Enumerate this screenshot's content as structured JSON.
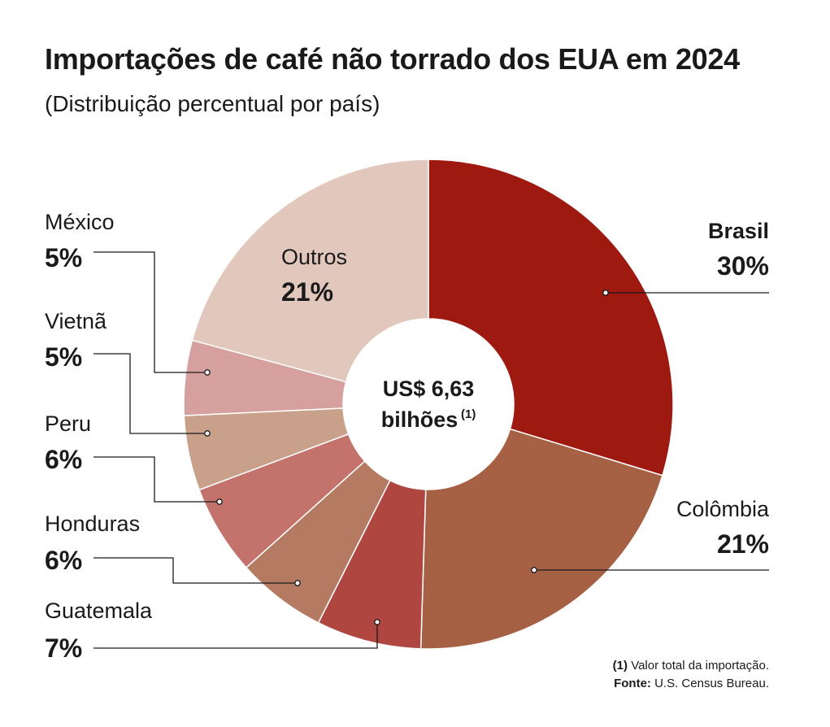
{
  "title": "Importações de café não torrado dos EUA em 2024",
  "subtitle": "(Distribuição percentual por país)",
  "center": {
    "line1": "US$ 6,63",
    "line2": "bilhões",
    "superscript": "(1)"
  },
  "footnote": {
    "note_marker": "(1)",
    "note_text": "Valor total da importação.",
    "source_label": "Fonte:",
    "source_text": "U.S. Census Bureau."
  },
  "chart_data": {
    "type": "pie",
    "title": "Importações de café não torrado dos EUA em 2024",
    "subtitle": "(Distribuição percentual por país)",
    "total_label": "US$ 6,63 bilhões",
    "unit": "%",
    "slices": [
      {
        "name": "Brasil",
        "value": 30,
        "label": "30%",
        "color": "#9e1a10"
      },
      {
        "name": "Colômbia",
        "value": 21,
        "label": "21%",
        "color": "#a66044"
      },
      {
        "name": "Guatemala",
        "value": 7,
        "label": "7%",
        "color": "#b04640"
      },
      {
        "name": "Honduras",
        "value": 6,
        "label": "6%",
        "color": "#b47b62"
      },
      {
        "name": "Peru",
        "value": 6,
        "label": "6%",
        "color": "#c4736c"
      },
      {
        "name": "Vietnã",
        "value": 5,
        "label": "5%",
        "color": "#c9a08a"
      },
      {
        "name": "México",
        "value": 5,
        "label": "5%",
        "color": "#d6a09e"
      },
      {
        "name": "Outros",
        "value": 21,
        "label": "21%",
        "color": "#e2c8bc"
      }
    ]
  }
}
